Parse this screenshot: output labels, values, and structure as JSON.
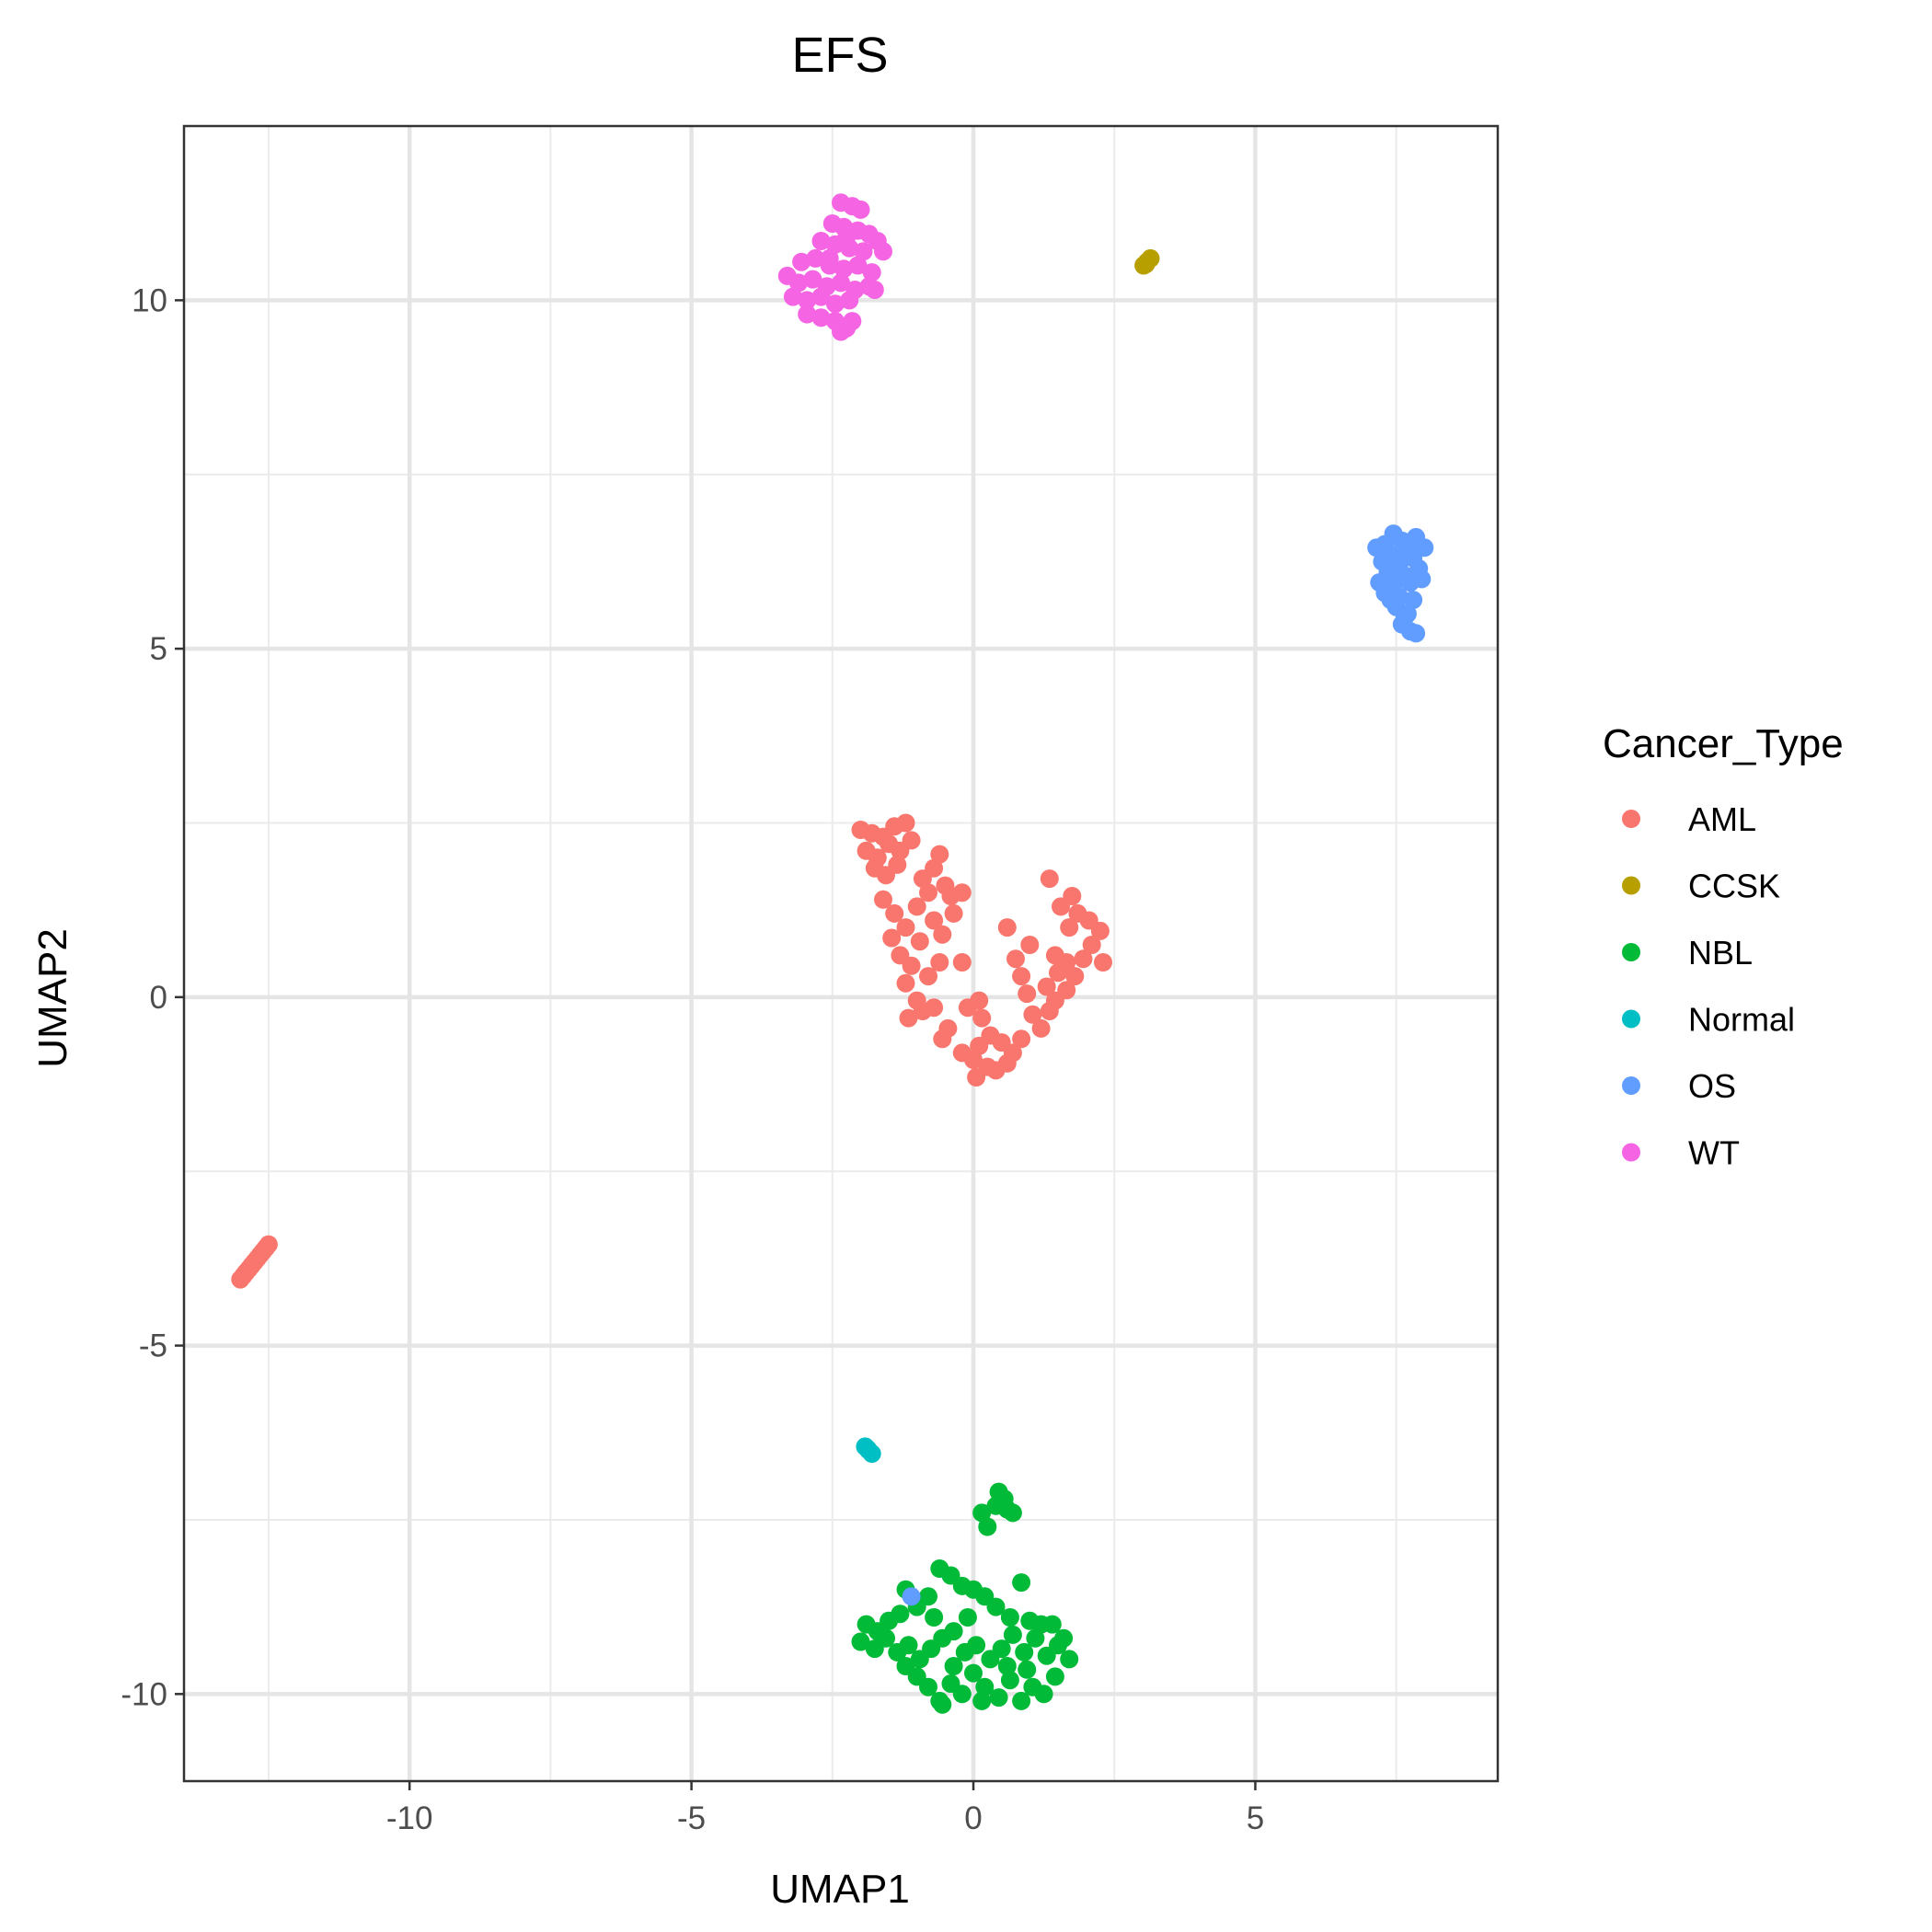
{
  "chart_data": {
    "type": "scatter",
    "title": "EFS",
    "xlabel": "UMAP1",
    "ylabel": "UMAP2",
    "xlim": [
      -14.0,
      9.3
    ],
    "ylim": [
      -11.25,
      12.5
    ],
    "x_ticks": [
      -10,
      -5,
      0,
      5
    ],
    "x_tick_labels": [
      "-10",
      "-5",
      "0",
      "5"
    ],
    "y_ticks": [
      -10,
      -5,
      0,
      5,
      10
    ],
    "y_tick_labels": [
      "-10",
      "-5",
      "0",
      "5",
      "10"
    ],
    "grid": true,
    "legend_title": "Cancer_Type",
    "legend_position": "right",
    "series": [
      {
        "name": "AML",
        "color": "#F8766D",
        "points": [
          [
            -13.0,
            -4.05
          ],
          [
            -12.95,
            -4.0
          ],
          [
            -12.9,
            -3.95
          ],
          [
            -12.85,
            -3.9
          ],
          [
            -12.8,
            -3.85
          ],
          [
            -12.75,
            -3.8
          ],
          [
            -12.7,
            -3.75
          ],
          [
            -12.65,
            -3.7
          ],
          [
            -12.6,
            -3.65
          ],
          [
            -12.55,
            -3.6
          ],
          [
            -12.5,
            -3.55
          ],
          [
            -2.0,
            2.4
          ],
          [
            -1.8,
            2.35
          ],
          [
            -1.6,
            2.3
          ],
          [
            -1.4,
            2.45
          ],
          [
            -1.2,
            2.5
          ],
          [
            -1.9,
            2.1
          ],
          [
            -1.7,
            2.0
          ],
          [
            -1.5,
            2.2
          ],
          [
            -1.3,
            2.1
          ],
          [
            -1.1,
            2.25
          ],
          [
            -1.75,
            1.85
          ],
          [
            -1.55,
            1.75
          ],
          [
            -1.35,
            1.9
          ],
          [
            -0.6,
            2.05
          ],
          [
            -0.7,
            1.85
          ],
          [
            -0.9,
            1.7
          ],
          [
            -0.5,
            1.6
          ],
          [
            -0.8,
            1.5
          ],
          [
            -0.4,
            1.45
          ],
          [
            -0.2,
            1.5
          ],
          [
            -1.6,
            1.4
          ],
          [
            -1.4,
            1.2
          ],
          [
            -1.2,
            1.0
          ],
          [
            -1.45,
            0.85
          ],
          [
            -1.3,
            0.6
          ],
          [
            -1.1,
            0.45
          ],
          [
            -1.0,
            1.3
          ],
          [
            -0.95,
            0.8
          ],
          [
            -0.7,
            1.1
          ],
          [
            -0.55,
            0.9
          ],
          [
            -0.35,
            1.2
          ],
          [
            -0.6,
            0.5
          ],
          [
            -0.8,
            0.3
          ],
          [
            -1.2,
            0.2
          ],
          [
            -1.0,
            -0.05
          ],
          [
            -1.15,
            -0.3
          ],
          [
            -0.9,
            -0.2
          ],
          [
            -0.7,
            -0.15
          ],
          [
            -0.45,
            -0.45
          ],
          [
            -0.55,
            -0.6
          ],
          [
            -0.2,
            -0.8
          ],
          [
            0.0,
            -0.9
          ],
          [
            0.1,
            -0.7
          ],
          [
            0.25,
            -1.0
          ],
          [
            0.05,
            -1.15
          ],
          [
            0.3,
            -0.55
          ],
          [
            0.5,
            -0.65
          ],
          [
            0.7,
            -0.8
          ],
          [
            0.85,
            -0.6
          ],
          [
            0.6,
            -0.95
          ],
          [
            0.4,
            -1.05
          ],
          [
            0.15,
            -0.3
          ],
          [
            -0.1,
            -0.15
          ],
          [
            0.1,
            -0.05
          ],
          [
            -0.2,
            0.5
          ],
          [
            0.6,
            1.0
          ],
          [
            0.75,
            0.55
          ],
          [
            0.85,
            0.3
          ],
          [
            0.95,
            0.05
          ],
          [
            1.05,
            -0.25
          ],
          [
            1.2,
            -0.45
          ],
          [
            1.35,
            -0.2
          ],
          [
            1.3,
            0.15
          ],
          [
            1.5,
            0.35
          ],
          [
            1.45,
            0.6
          ],
          [
            1.65,
            0.5
          ],
          [
            1.8,
            0.3
          ],
          [
            1.95,
            0.55
          ],
          [
            2.1,
            0.75
          ],
          [
            2.3,
            0.5
          ],
          [
            2.25,
            0.95
          ],
          [
            2.05,
            1.1
          ],
          [
            1.85,
            1.2
          ],
          [
            1.75,
            1.45
          ],
          [
            1.55,
            1.3
          ],
          [
            1.7,
            1.0
          ],
          [
            1.35,
            1.7
          ],
          [
            1.65,
            0.1
          ],
          [
            1.45,
            -0.05
          ],
          [
            1.0,
            0.75
          ]
        ]
      },
      {
        "name": "CCSK",
        "color": "#B79F00",
        "points": [
          [
            3.02,
            10.5
          ],
          [
            3.08,
            10.55
          ],
          [
            3.14,
            10.6
          ],
          [
            3.06,
            10.52
          ]
        ]
      },
      {
        "name": "NBL",
        "color": "#00BA38",
        "points": [
          [
            0.45,
            -7.1
          ],
          [
            0.55,
            -7.2
          ],
          [
            0.6,
            -7.35
          ],
          [
            0.7,
            -7.4
          ],
          [
            0.4,
            -7.3
          ],
          [
            0.15,
            -7.4
          ],
          [
            0.25,
            -7.6
          ],
          [
            -0.6,
            -8.2
          ],
          [
            -0.4,
            -8.3
          ],
          [
            -0.2,
            -8.45
          ],
          [
            0.0,
            -8.5
          ],
          [
            0.2,
            -8.6
          ],
          [
            0.4,
            -8.75
          ],
          [
            0.65,
            -8.9
          ],
          [
            0.85,
            -8.4
          ],
          [
            1.0,
            -8.95
          ],
          [
            -1.2,
            -8.5
          ],
          [
            -1.0,
            -8.75
          ],
          [
            -0.8,
            -8.6
          ],
          [
            -1.3,
            -8.85
          ],
          [
            -1.5,
            -8.95
          ],
          [
            -1.7,
            -9.1
          ],
          [
            -1.9,
            -9.0
          ],
          [
            -2.0,
            -9.25
          ],
          [
            -1.75,
            -9.35
          ],
          [
            -1.55,
            -9.2
          ],
          [
            -1.35,
            -9.4
          ],
          [
            -1.15,
            -9.3
          ],
          [
            -0.95,
            -9.5
          ],
          [
            -0.75,
            -9.35
          ],
          [
            -0.55,
            -9.2
          ],
          [
            -0.35,
            -9.1
          ],
          [
            -0.15,
            -9.4
          ],
          [
            0.05,
            -9.3
          ],
          [
            0.3,
            -9.5
          ],
          [
            0.5,
            -9.35
          ],
          [
            0.7,
            -9.15
          ],
          [
            0.9,
            -9.4
          ],
          [
            1.1,
            -9.2
          ],
          [
            1.3,
            -9.45
          ],
          [
            1.5,
            -9.3
          ],
          [
            1.7,
            -9.5
          ],
          [
            1.2,
            -9.0
          ],
          [
            1.45,
            -9.75
          ],
          [
            -1.0,
            -9.75
          ],
          [
            -0.8,
            -9.9
          ],
          [
            -0.6,
            -10.1
          ],
          [
            -0.4,
            -9.85
          ],
          [
            -0.2,
            -10.0
          ],
          [
            0.0,
            -9.7
          ],
          [
            0.2,
            -9.9
          ],
          [
            0.45,
            -10.05
          ],
          [
            0.65,
            -9.8
          ],
          [
            0.85,
            -10.1
          ],
          [
            1.05,
            -9.9
          ],
          [
            1.25,
            -10.0
          ],
          [
            -0.55,
            -10.15
          ],
          [
            0.15,
            -10.1
          ],
          [
            -1.2,
            -9.6
          ],
          [
            -0.35,
            -9.6
          ],
          [
            1.4,
            -9.0
          ],
          [
            -0.1,
            -8.9
          ],
          [
            0.6,
            -9.6
          ],
          [
            1.6,
            -9.2
          ],
          [
            0.95,
            -9.65
          ],
          [
            -0.7,
            -8.9
          ]
        ]
      },
      {
        "name": "Normal",
        "color": "#00BFC4",
        "points": [
          [
            -1.92,
            -6.45
          ],
          [
            -1.86,
            -6.5
          ],
          [
            -1.8,
            -6.55
          ],
          [
            -1.88,
            -6.48
          ]
        ]
      },
      {
        "name": "OS",
        "color": "#619CFF",
        "points": [
          [
            7.45,
            6.65
          ],
          [
            7.3,
            6.5
          ],
          [
            7.6,
            6.55
          ],
          [
            7.85,
            6.6
          ],
          [
            7.15,
            6.45
          ],
          [
            7.4,
            6.35
          ],
          [
            7.7,
            6.4
          ],
          [
            8.0,
            6.45
          ],
          [
            7.25,
            6.25
          ],
          [
            7.55,
            6.2
          ],
          [
            7.8,
            6.3
          ],
          [
            7.35,
            6.1
          ],
          [
            7.65,
            6.05
          ],
          [
            7.9,
            6.15
          ],
          [
            7.2,
            5.95
          ],
          [
            7.45,
            5.9
          ],
          [
            7.75,
            5.95
          ],
          [
            7.3,
            5.8
          ],
          [
            7.55,
            5.75
          ],
          [
            7.8,
            5.7
          ],
          [
            7.5,
            5.6
          ],
          [
            7.7,
            5.5
          ],
          [
            7.6,
            5.35
          ],
          [
            7.75,
            5.25
          ],
          [
            7.85,
            5.22
          ],
          [
            7.65,
            5.45
          ],
          [
            7.4,
            5.7
          ],
          [
            7.95,
            6.0
          ],
          [
            -1.1,
            -8.6
          ]
        ]
      },
      {
        "name": "WT",
        "color": "#F564E3",
        "points": [
          [
            -2.35,
            11.4
          ],
          [
            -2.15,
            11.35
          ],
          [
            -2.0,
            11.3
          ],
          [
            -2.5,
            11.1
          ],
          [
            -2.3,
            11.05
          ],
          [
            -2.05,
            11.0
          ],
          [
            -1.85,
            10.95
          ],
          [
            -1.7,
            10.85
          ],
          [
            -2.7,
            10.85
          ],
          [
            -2.45,
            10.8
          ],
          [
            -2.2,
            10.75
          ],
          [
            -1.95,
            10.7
          ],
          [
            -1.6,
            10.7
          ],
          [
            -3.05,
            10.55
          ],
          [
            -2.8,
            10.6
          ],
          [
            -2.55,
            10.5
          ],
          [
            -2.3,
            10.45
          ],
          [
            -2.05,
            10.5
          ],
          [
            -1.8,
            10.4
          ],
          [
            -3.3,
            10.35
          ],
          [
            -3.1,
            10.25
          ],
          [
            -2.85,
            10.3
          ],
          [
            -2.6,
            10.2
          ],
          [
            -2.35,
            10.25
          ],
          [
            -2.1,
            10.15
          ],
          [
            -1.85,
            10.2
          ],
          [
            -3.2,
            10.05
          ],
          [
            -2.95,
            10.0
          ],
          [
            -2.7,
            10.05
          ],
          [
            -2.45,
            9.95
          ],
          [
            -2.2,
            10.0
          ],
          [
            -1.75,
            10.15
          ],
          [
            -2.95,
            9.8
          ],
          [
            -2.7,
            9.75
          ],
          [
            -2.45,
            9.7
          ],
          [
            -2.25,
            9.6
          ],
          [
            -2.35,
            9.55
          ],
          [
            -2.15,
            9.7
          ],
          [
            -2.55,
            10.6
          ],
          [
            -2.25,
            10.9
          ]
        ]
      }
    ]
  }
}
